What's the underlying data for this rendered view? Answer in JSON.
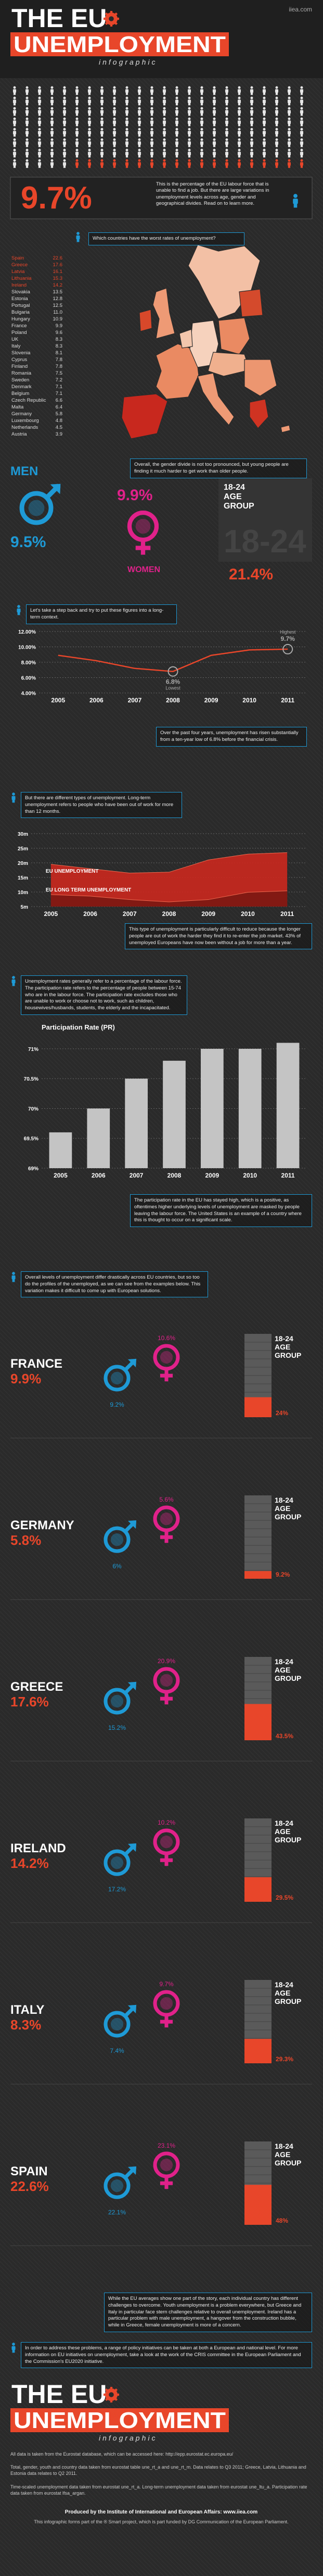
{
  "header": {
    "title": "THE EU",
    "title2": "UNEMPLOYMENT",
    "subtitle": "infographic",
    "site": "iiea.com"
  },
  "intro": {
    "stat": "9.7%",
    "text": "This is the percentage of the EU labour force that is unable to find a job. But there are large variations in unemployment levels across age, gender and geographical divides. Read on to learn more."
  },
  "countries": {
    "question": "Which countries have the worst rates of unemployment?",
    "rows": [
      [
        "Spain",
        "22.6"
      ],
      [
        "Greece",
        "17.6"
      ],
      [
        "Latvia",
        "16.1"
      ],
      [
        "Lithuania",
        "15.3"
      ],
      [
        "Ireland",
        "14.2"
      ],
      [
        "Slovakia",
        "13.5"
      ],
      [
        "Estonia",
        "12.8"
      ],
      [
        "Portugal",
        "12.5"
      ],
      [
        "Bulgaria",
        "11.0"
      ],
      [
        "Hungary",
        "10.9"
      ],
      [
        "France",
        "9.9"
      ],
      [
        "Poland",
        "9.6"
      ],
      [
        "UK",
        "8.3"
      ],
      [
        "Italy",
        "8.3"
      ],
      [
        "Slovenia",
        "8.1"
      ],
      [
        "Cyprus",
        "7.8"
      ],
      [
        "Finland",
        "7.8"
      ],
      [
        "Romania",
        "7.5"
      ],
      [
        "Sweden",
        "7.2"
      ],
      [
        "Denmark",
        "7.1"
      ],
      [
        "Belgium",
        "7.1"
      ],
      [
        "Czech Republic",
        "6.6"
      ],
      [
        "Malta",
        "6.4"
      ],
      [
        "Germany",
        "5.8"
      ],
      [
        "Luxembourg",
        "4.8"
      ],
      [
        "Netherlands",
        "4.5"
      ],
      [
        "Austria",
        "3.9"
      ]
    ]
  },
  "gender": {
    "text": "Overall, the gender divide is not too pronounced, but young people are finding it much harder to get work than older people.",
    "men_label": "MEN",
    "men": "9.5%",
    "women_label": "WOMEN",
    "women": "9.9%",
    "age_label": "18-24",
    "age_label2": "AGE",
    "age_label3": "GROUP",
    "age": "21.4%"
  },
  "context": {
    "before": "Let's take a step back and try to put these figures into a long-term context.",
    "after": "Over the past four years, unemployment has risen substantially from a ten-year low of 6.8% before the financial crisis."
  },
  "types": {
    "before": "But there are different types of unemployment. Long-term unemployment refers to people who have been out of work for more than 12 months.",
    "after": "This type of unemployment is particularly difficult to reduce because the longer people are out of work the harder they find it to re-enter the job market. 43% of unemployed Europeans have now been without a job for more than a year."
  },
  "participation": {
    "before": "Unemployment rates generally refer to a percentage of the labour force. The participation rate refers to the percentage of people between 15-74 who are in the labour force. The participation rate excludes those who are unable to work or choose not to work, such as children, housewives/husbands, students, the elderly and the incapacitated.",
    "after": "The participation rate in the EU has stayed high, which is a positive, as oftentimes higher underlying levels of unemployment are masked by people leaving the labour force. The United States is an example of a country where this is thought to occur on a significant scale."
  },
  "profiles": {
    "intro": "Overall levels of unemployment differ drastically across EU countries, but so too do the profiles of the unemployed, as we can see from the examples below. This variation makes it difficult to come up with European solutions.",
    "age_label": "18-24",
    "age_label2": "AGE",
    "age_label3": "GROUP",
    "items": [
      {
        "name": "FRANCE",
        "overall": "9.9%",
        "values": [
          9.2,
          10.6,
          24
        ],
        "value_labels": [
          "9.2%",
          "10.6%",
          "24%"
        ]
      },
      {
        "name": "GERMANY",
        "overall": "5.8%",
        "values": [
          6,
          5.6,
          9.2
        ],
        "value_labels": [
          "6%",
          "5.6%",
          "9.2%"
        ]
      },
      {
        "name": "GREECE",
        "overall": "17.6%",
        "values": [
          15.2,
          20.9,
          43.5
        ],
        "value_labels": [
          "15.2%",
          "20.9%",
          "43.5%"
        ]
      },
      {
        "name": "IRELAND",
        "overall": "14.2%",
        "values": [
          17.2,
          10.2,
          29.5
        ],
        "value_labels": [
          "17.2%",
          "10.2%",
          "29.5%"
        ]
      },
      {
        "name": "ITALY",
        "overall": "8.3%",
        "values": [
          7.4,
          9.7,
          29.3
        ],
        "value_labels": [
          "7.4%",
          "9.7%",
          "29.3%"
        ]
      },
      {
        "name": "SPAIN",
        "overall": "22.6%",
        "values": [
          22.1,
          23.1,
          48
        ],
        "value_labels": [
          "22.1%",
          "23.1%",
          "48%"
        ]
      }
    ]
  },
  "closing": {
    "text1": "While the EU averages show one part of the story, each individual country has different challenges to overcome. Youth unemployment is a problem everywhere, but Greece and Italy in particular face stern challenges relative to overall unemployment. Ireland has a particular problem with male unemployment, a hangover from the construction bubble, while in Greece, female unemployment is more of a concern.",
    "text2": "In order to address these problems, a range of policy initiatives can be taken at both a European and national level. For more information on EU initiatives on unemployment, take a look at the work of the CRIS committee in the European Parliament and the Commission's EU2020 initiative."
  },
  "footer": {
    "title": "THE EU",
    "title2": "UNEMPLOYMENT",
    "subtitle": "infographic",
    "sources": [
      "All data is taken from the Eurostat database, which can be accessed here: http://epp.eurostat.ec.europa.eu/",
      "Total, gender, youth and country data taken from eurostat table une_rt_a and une_rt_m. Data relates to Q3 2011; Greece, Latvia, Lithuania and Estonia data relates to Q2 2011.",
      "Time-scaled unemployment data taken from eurostat une_rt_a. Long-term unemployment data taken from eurostat une_ltu_a. Participation rate data taken from eurostat lfsa_argan."
    ],
    "producer": "Produced by the Institute of International and European Affairs: www.iiea.com",
    "note": "This infographic forms part of the ® Smart project, which is part funded by DG Communication of the European Parliament."
  },
  "chart_data": [
    {
      "type": "line",
      "categories": [
        "2005",
        "2006",
        "2007",
        "2008",
        "2009",
        "2010",
        "2011"
      ],
      "values": [
        8.9,
        8.2,
        7.2,
        6.8,
        8.9,
        9.6,
        9.7
      ],
      "color": "#e8462a",
      "ylim": [
        4,
        12
      ],
      "yticks": [
        {
          "value": 4,
          "label": "4.00%"
        },
        {
          "value": 6,
          "label": "6.00%"
        },
        {
          "value": 8,
          "label": "8.00%"
        },
        {
          "value": 10,
          "label": "10.00%"
        },
        {
          "value": 12,
          "label": "12.00%"
        }
      ],
      "grid": true,
      "annotations": {
        "high": "Highest",
        "high_value": "9.7%",
        "low": "Lowest",
        "low_value": "6.8%"
      }
    },
    {
      "type": "area",
      "categories": [
        "2005",
        "2006",
        "2007",
        "2008",
        "2009",
        "2010",
        "2011"
      ],
      "series": [
        {
          "name": "EU UNEMPLOYMENT",
          "color": "#c8281e",
          "values": [
            19.5,
            18,
            16.5,
            16.8,
            21,
            23,
            23.5
          ]
        },
        {
          "name": "EU LONG TERM UNEMPLOYMENT",
          "color": "#7d1812",
          "values": [
            9.1,
            8.6,
            7.4,
            6.6,
            7.4,
            9.9,
            10.4
          ]
        }
      ],
      "ylim": [
        5,
        30
      ],
      "yticks": [
        {
          "value": 5,
          "label": "5m"
        },
        {
          "value": 10,
          "label": "10m"
        },
        {
          "value": 15,
          "label": "15m"
        },
        {
          "value": 20,
          "label": "20m"
        },
        {
          "value": 25,
          "label": "25m"
        },
        {
          "value": 30,
          "label": "30m"
        }
      ],
      "grid": true
    },
    {
      "type": "bar",
      "title": "Participation Rate (PR)",
      "categories": [
        "2005",
        "2006",
        "2007",
        "2008",
        "2009",
        "2010",
        "2011"
      ],
      "values": [
        69.6,
        70,
        70.5,
        70.8,
        71,
        71,
        71.1
      ],
      "color": "#c4c4c4",
      "ylim": [
        69,
        71.2
      ],
      "yticks": [
        {
          "value": 69,
          "label": "69%"
        },
        {
          "value": 69.5,
          "label": "69.5%"
        },
        {
          "value": 70,
          "label": "70%"
        },
        {
          "value": 70.5,
          "label": "70.5%"
        },
        {
          "value": 71,
          "label": "71%"
        }
      ],
      "grid": true
    }
  ]
}
